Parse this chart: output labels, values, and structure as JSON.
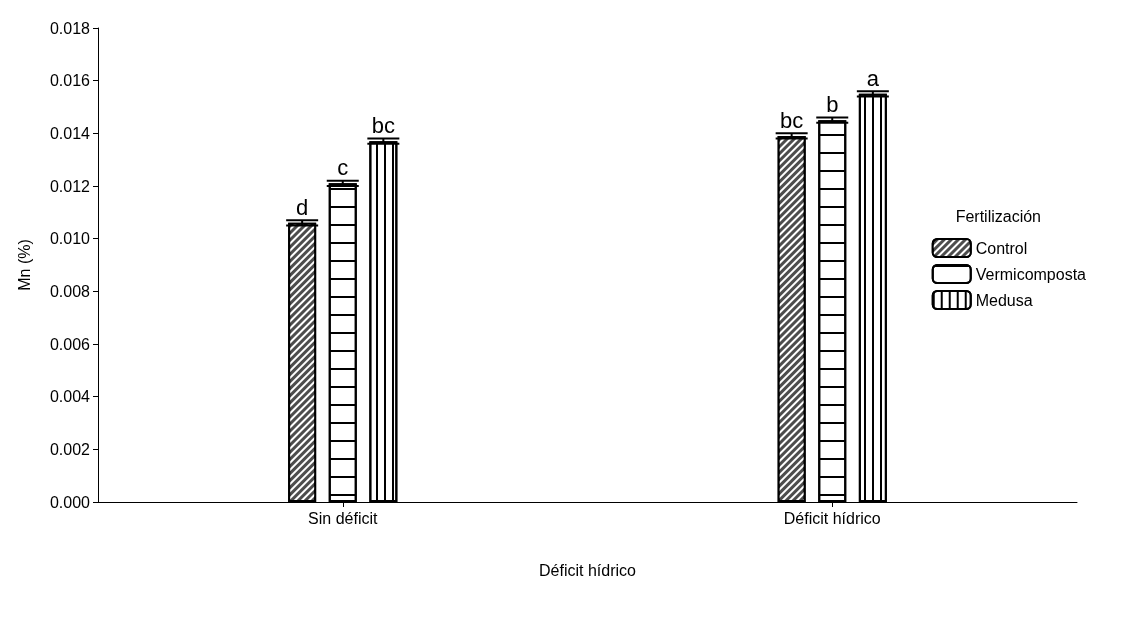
{
  "chart_data": {
    "type": "bar",
    "xlabel": "Déficit hídrico",
    "ylabel": "Mn (%)",
    "legend_title": "Fertilización",
    "categories": [
      "Sin déficit",
      "Déficit hídrico"
    ],
    "series": [
      {
        "name": "Control",
        "color": "#4d4d4d",
        "values": [
          0.0106,
          0.0139
        ],
        "errors": [
          0.0001,
          0.0001
        ]
      },
      {
        "name": "Vermicomposta",
        "color": "#ffffff",
        "values": [
          0.0121,
          0.0145
        ],
        "errors": [
          0.0001,
          0.0001
        ]
      },
      {
        "name": "Medusa",
        "color": "#ffffff",
        "values": [
          0.0137,
          0.0155
        ],
        "errors": [
          0.0001,
          0.0001
        ]
      }
    ],
    "ylim": [
      0,
      0.018
    ],
    "yticks": [
      {
        "value": 0,
        "label": "0.000"
      },
      {
        "value": 0.002,
        "label": "0.002"
      },
      {
        "value": 0.004,
        "label": "0.004"
      },
      {
        "value": 0.006,
        "label": "0.006"
      },
      {
        "value": 0.008,
        "label": "0.008"
      },
      {
        "value": 0.01,
        "label": "0.010"
      },
      {
        "value": 0.012,
        "label": "0.012"
      },
      {
        "value": 0.014,
        "label": "0.014"
      },
      {
        "value": 0.016,
        "label": "0.016"
      },
      {
        "value": 0.018,
        "label": "0.018"
      }
    ],
    "annotations": [
      "d",
      "c",
      "bc",
      "bc",
      "b",
      "a"
    ],
    "legend": "right",
    "grid": false
  }
}
